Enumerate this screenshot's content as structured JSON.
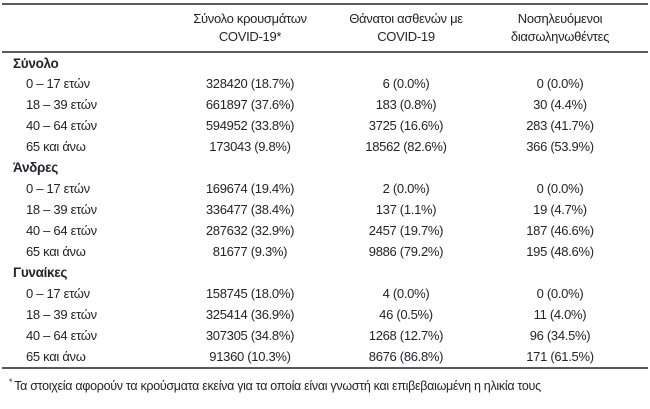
{
  "page": {
    "background": "#ffffff",
    "text_color": "#23232b",
    "rule_color": "#59595d"
  },
  "table": {
    "columns": [
      {
        "line1": "Σύνολο κρουσμάτων",
        "line2": "COVID-19*"
      },
      {
        "line1": "Θάνατοι ασθενών με",
        "line2": "COVID-19"
      },
      {
        "line1": "Νοσηλευόμενοι",
        "line2": "διασωληνωθέντες"
      }
    ],
    "sections": [
      {
        "label": "Σύνολο",
        "rows": [
          {
            "age": "0 – 17 ετών",
            "cases": "328420 (18.7%)",
            "deaths": "6 (0.0%)",
            "intubated": "0 (0.0%)"
          },
          {
            "age": "18 – 39 ετών",
            "cases": "661897 (37.6%)",
            "deaths": "183 (0.8%)",
            "intubated": "30 (4.4%)"
          },
          {
            "age": "40 – 64 ετών",
            "cases": "594952 (33.8%)",
            "deaths": "3725 (16.6%)",
            "intubated": "283 (41.7%)"
          },
          {
            "age": "65 και άνω",
            "cases": "173043 (9.8%)",
            "deaths": "18562 (82.6%)",
            "intubated": "366 (53.9%)"
          }
        ]
      },
      {
        "label": "Άνδρες",
        "rows": [
          {
            "age": "0 – 17 ετών",
            "cases": "169674 (19.4%)",
            "deaths": "2 (0.0%)",
            "intubated": "0 (0.0%)"
          },
          {
            "age": "18 – 39 ετών",
            "cases": "336477 (38.4%)",
            "deaths": "137 (1.1%)",
            "intubated": "19 (4.7%)"
          },
          {
            "age": "40 – 64 ετών",
            "cases": "287632 (32.9%)",
            "deaths": "2457 (19.7%)",
            "intubated": "187 (46.6%)"
          },
          {
            "age": "65 και άνω",
            "cases": "81677 (9.3%)",
            "deaths": "9886 (79.2%)",
            "intubated": "195 (48.6%)"
          }
        ]
      },
      {
        "label": "Γυναίκες",
        "rows": [
          {
            "age": "0 – 17 ετών",
            "cases": "158745 (18.0%)",
            "deaths": "4 (0.0%)",
            "intubated": "0 (0.0%)"
          },
          {
            "age": "18 – 39 ετών",
            "cases": "325414 (36.9%)",
            "deaths": "46 (0.5%)",
            "intubated": "11 (4.0%)"
          },
          {
            "age": "40 – 64 ετών",
            "cases": "307305 (34.8%)",
            "deaths": "1268 (12.7%)",
            "intubated": "96 (34.5%)"
          },
          {
            "age": "65 και άνω",
            "cases": "91360 (10.3%)",
            "deaths": "8676 (86.8%)",
            "intubated": "171 (61.5%)"
          }
        ]
      }
    ],
    "footnote_marker": "*",
    "footnote": "Τα στοιχεία αφορούν τα κρούσματα εκείνα για τα οποία είναι γνωστή και επιβεβαιωμένη η ηλικία τους"
  }
}
